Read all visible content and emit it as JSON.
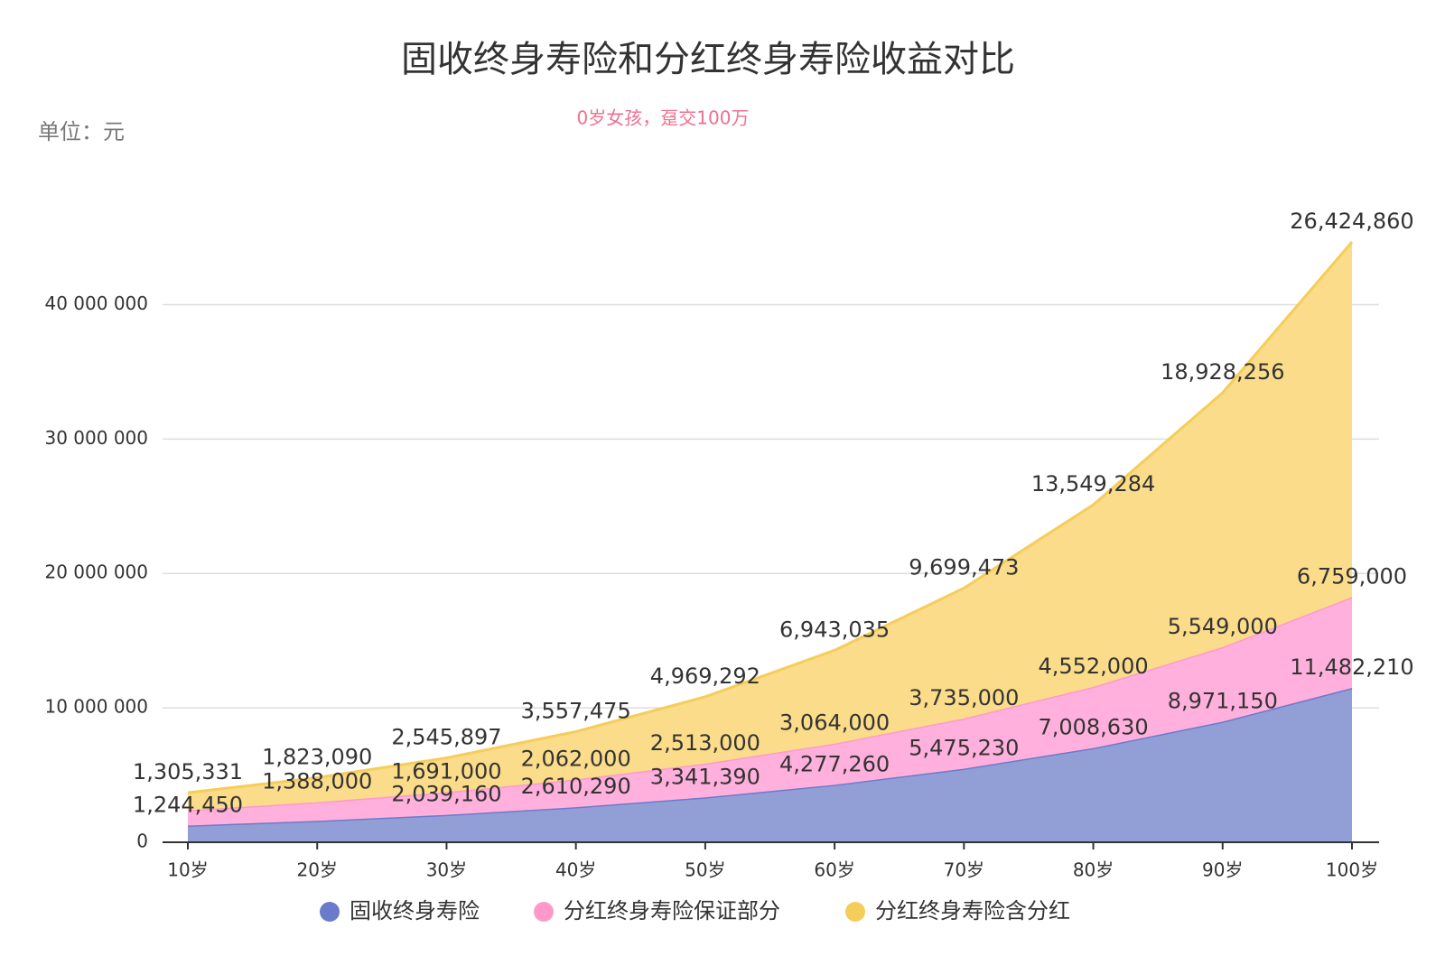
{
  "chart_data": {
    "type": "stacked-area",
    "title": "固收终身寿险和分红终身寿险收益对比",
    "subtitle": "0岁女孩，趸交100万",
    "unit_label": "单位：元",
    "categories": [
      "10岁",
      "20岁",
      "30岁",
      "40岁",
      "50岁",
      "60岁",
      "70岁",
      "80岁",
      "90岁",
      "100岁"
    ],
    "series": [
      {
        "name": "固收终身寿险",
        "color": "#6b7bcc",
        "fill": "#929fd6",
        "values": [
          1244450,
          1593000,
          2039160,
          2610290,
          3341390,
          4277260,
          5475230,
          7008630,
          8971150,
          11482210
        ],
        "value_labels": [
          "1,244,450",
          null,
          "2,039,160",
          "2,610,290",
          "3,341,390",
          "4,277,260",
          "5,475,230",
          "7,008,630",
          "8,971,150",
          "11,482,210"
        ]
      },
      {
        "name": "分红终身寿险保证部分",
        "color": "#ff99cc",
        "fill": "#ffb0dc",
        "values": [
          1139000,
          1388000,
          1691000,
          2062000,
          2513000,
          3064000,
          3735000,
          4552000,
          5549000,
          6759000
        ],
        "value_labels": [
          null,
          "1,388,000",
          "1,691,000",
          "2,062,000",
          "2,513,000",
          "3,064,000",
          "3,735,000",
          "4,552,000",
          "5,549,000",
          "6,759,000"
        ]
      },
      {
        "name": "分红终身寿险含分红",
        "color": "#f5cd5a",
        "fill": "#fadc8a",
        "values": [
          1305331,
          1823090,
          2545897,
          3557475,
          4969292,
          6943035,
          9699473,
          13549284,
          18928256,
          26424860
        ],
        "value_labels": [
          "1,305,331",
          "1,823,090",
          "2,545,897",
          "3,557,475",
          "4,969,292",
          "6,943,035",
          "9,699,473",
          "13,549,284",
          "18,928,256",
          "26,424,860"
        ]
      }
    ],
    "ylim": [
      0,
      45000000
    ],
    "yticks": [
      0,
      {
        "value": 10000000,
        "label": "10 000 000"
      },
      {
        "value": 20000000,
        "label": "20 000 000"
      },
      {
        "value": 30000000,
        "label": "30 000 000"
      },
      {
        "value": 40000000,
        "label": "40 000 000"
      }
    ],
    "grid": true
  }
}
